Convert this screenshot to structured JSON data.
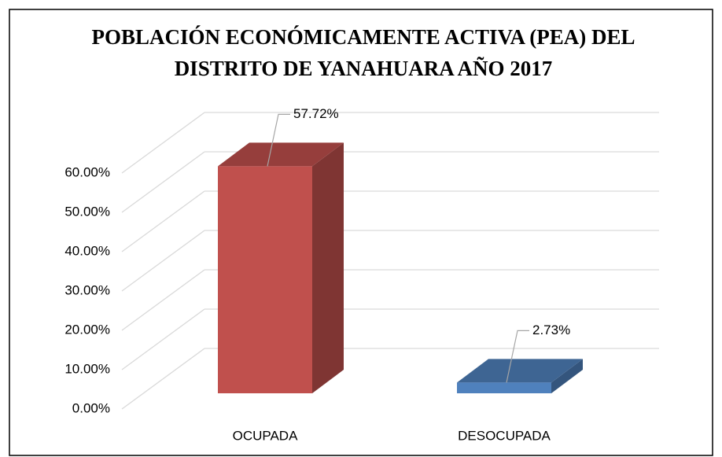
{
  "chart_data": {
    "type": "bar3d",
    "title": [
      "POBLACIÓN ECONÓMICAMENTE ACTIVA (PEA) DEL",
      "DISTRITO DE YANAHUARA AÑO 2017"
    ],
    "categories": [
      "OCUPADA",
      "DESOCUPADA"
    ],
    "values": [
      57.72,
      2.73
    ],
    "value_labels": [
      "57.72%",
      "2.73%"
    ],
    "colors": [
      "#c0504d",
      "#4f81bd"
    ],
    "ylim": [
      0,
      60
    ],
    "yticks": [
      {
        "value": 0,
        "label": "0.00%"
      },
      {
        "value": 10,
        "label": "10.00%"
      },
      {
        "value": 20,
        "label": "20.00%"
      },
      {
        "value": 30,
        "label": "30.00%"
      },
      {
        "value": 40,
        "label": "40.00%"
      },
      {
        "value": 50,
        "label": "50.00%"
      },
      {
        "value": 60,
        "label": "60.00%"
      }
    ],
    "grid": true
  }
}
